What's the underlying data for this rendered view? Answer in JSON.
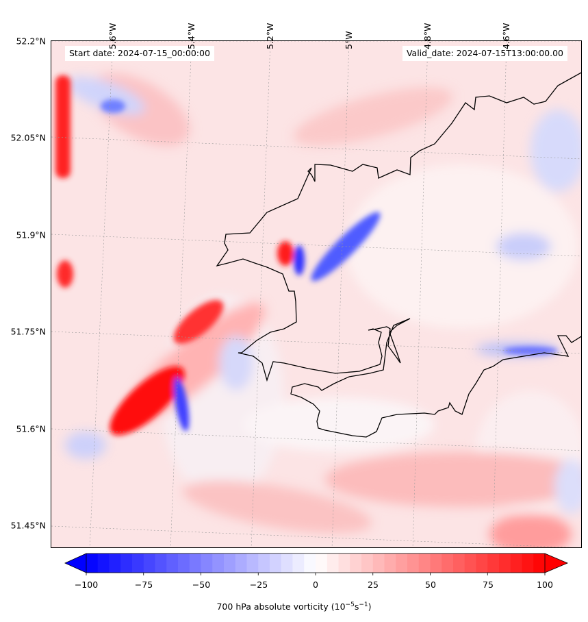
{
  "header": {
    "start_date": "Start date: 2024-07-15_00:00:00",
    "valid_date": "Valid_date: 2024-07-15T13:00:00.00"
  },
  "axes": {
    "lat_labels": [
      "52.2°N",
      "52.05°N",
      "51.9°N",
      "51.75°N",
      "51.6°N",
      "51.45°N"
    ],
    "lon_labels": [
      "5.6°W",
      "5.4°W",
      "5.2°W",
      "5°W",
      "4.8°W",
      "4.6°W"
    ]
  },
  "colorbar": {
    "ticks": [
      "−100",
      "−75",
      "−50",
      "−25",
      "0",
      "25",
      "50",
      "75",
      "100"
    ],
    "label_main": "700 hPa absolute vorticity (10",
    "label_exp1": "−5",
    "label_mid": "s",
    "label_exp2": "−1",
    "label_end": ")",
    "min_color": "#0000ff",
    "mid_color": "#ffffff",
    "max_color": "#ff0000",
    "range": [
      -100,
      100
    ],
    "extend": "both"
  }
}
